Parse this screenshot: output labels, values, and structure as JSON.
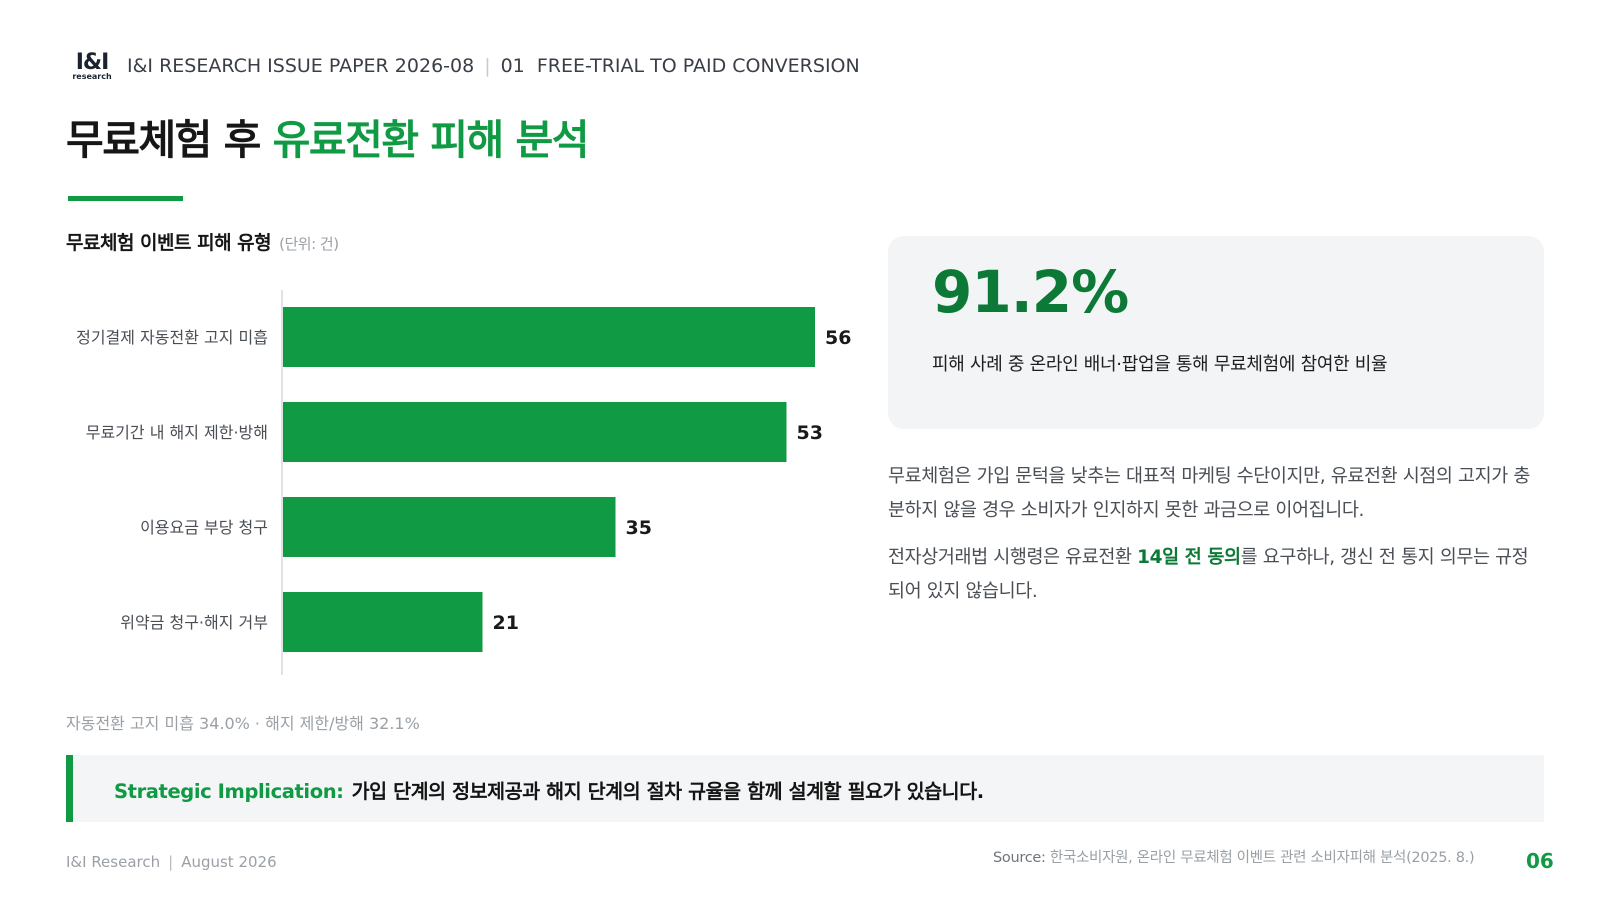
{
  "header": {
    "logo_main": "I&I",
    "logo_sub": "research",
    "series": "I&I RESEARCH ISSUE PAPER 2026-08",
    "section": "01  FREE-TRIAL TO PAID CONVERSION"
  },
  "title": {
    "part1": "무료체험 후 ",
    "part2": "유료전환 피해 분석"
  },
  "chart_section": {
    "title": "무료체험 이벤트 피해 유형",
    "unit": "(단위: 건)",
    "note": "자동전환 고지 미흡 34.0% · 해지 제한/방해 32.1%"
  },
  "chart_data": {
    "type": "bar",
    "orientation": "horizontal",
    "title": "무료체험 이벤트 피해 유형",
    "unit": "(단위: 건)",
    "categories": [
      "정기결제 자동전환 고지 미흡",
      "무료기간 내 해지 제한·방해",
      "이용요금 부당 청구",
      "위약금 청구·해지 거부"
    ],
    "values": [
      56,
      53,
      35,
      21
    ],
    "xlim": [
      0,
      60
    ],
    "grid": false,
    "color": "#0f9a43"
  },
  "stat": {
    "value": "91.2%",
    "desc": "피해 사례 중 온라인 배너·팝업을 통해 무료체험에 참여한 비율"
  },
  "body": {
    "p1": "무료체험은 가입 문턱을 낮추는 대표적 마케팅 수단이지만, 유료전환 시점의 고지가 충분하지 않을 경우 소비자가 인지하지 못한 과금으로 이어집니다.",
    "p2_before": "전자상거래법 시행령은 유료전환 ",
    "p2_emph": "14일 전 동의",
    "p2_after": "를 요구하나, 갱신 전 통지 의무는 규정되어 있지 않습니다."
  },
  "implication": {
    "label": "Strategic Implication:",
    "text": "가입 단계의 정보제공과 해지 단계의 절차 규율을 함께 설계할 필요가 있습니다."
  },
  "footer": {
    "org": "I&I Research",
    "date": "August 2026",
    "source_label": "Source:",
    "source_text": "한국소비자원, 온라인 무료체험 이벤트 관련 소비자피해 분석(2025. 8.)",
    "page": "06"
  },
  "colors": {
    "accent": "#0f9a43",
    "accent_dark": "#0c7a36",
    "card_bg": "#f3f4f6"
  }
}
